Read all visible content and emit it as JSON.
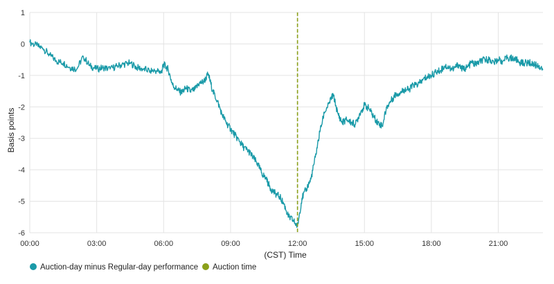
{
  "chart_data": {
    "type": "line",
    "title": "",
    "xlabel": "(CST) Time",
    "ylabel": "Basis points",
    "x_unit": "hours",
    "xlim": [
      0,
      23
    ],
    "ylim": [
      -6,
      1
    ],
    "x_ticks": [
      {
        "value": 0,
        "label": "00:00"
      },
      {
        "value": 3,
        "label": "03:00"
      },
      {
        "value": 6,
        "label": "06:00"
      },
      {
        "value": 9,
        "label": "09:00"
      },
      {
        "value": 12,
        "label": "12:00"
      },
      {
        "value": 15,
        "label": "15:00"
      },
      {
        "value": 18,
        "label": "18:00"
      },
      {
        "value": 21,
        "label": "21:00"
      }
    ],
    "y_ticks": [
      {
        "value": 1,
        "label": "1"
      },
      {
        "value": 0,
        "label": "0"
      },
      {
        "value": -1,
        "label": "-1"
      },
      {
        "value": -2,
        "label": "-2"
      },
      {
        "value": -3,
        "label": "-3"
      },
      {
        "value": -4,
        "label": "-4"
      },
      {
        "value": -5,
        "label": "-5"
      },
      {
        "value": -6,
        "label": "-6"
      }
    ],
    "grid": true,
    "legend_position": "bottom-left",
    "series": [
      {
        "name": "Auction-day minus Regular-day performance",
        "color": "#1a9aa8",
        "x": [
          0,
          0.3,
          0.6,
          0.9,
          1.2,
          1.5,
          1.8,
          2.1,
          2.4,
          2.7,
          3.0,
          3.3,
          3.6,
          3.9,
          4.2,
          4.5,
          4.8,
          5.1,
          5.4,
          5.7,
          5.9,
          6.0,
          6.2,
          6.4,
          6.6,
          6.8,
          7.0,
          7.2,
          7.4,
          7.6,
          7.8,
          8.0,
          8.2,
          8.4,
          8.6,
          8.8,
          9.0,
          9.2,
          9.4,
          9.6,
          9.8,
          10.0,
          10.2,
          10.4,
          10.6,
          10.8,
          11.0,
          11.2,
          11.4,
          11.6,
          11.8,
          12.0,
          12.2,
          12.4,
          12.6,
          12.8,
          13.0,
          13.2,
          13.4,
          13.6,
          13.8,
          14.0,
          14.2,
          14.4,
          14.6,
          14.8,
          15.0,
          15.2,
          15.4,
          15.6,
          15.8,
          16.0,
          16.2,
          16.4,
          16.6,
          16.8,
          17.0,
          17.2,
          17.4,
          17.6,
          17.8,
          18.0,
          18.2,
          18.4,
          18.6,
          18.8,
          19.0,
          19.2,
          19.4,
          19.6,
          19.8,
          20.0,
          20.2,
          20.4,
          20.6,
          20.8,
          21.0,
          21.2,
          21.4,
          21.6,
          21.8,
          22.0,
          22.2,
          22.4,
          22.6,
          22.8,
          23.0
        ],
        "y": [
          0.05,
          -0.05,
          -0.15,
          -0.35,
          -0.55,
          -0.6,
          -0.75,
          -0.8,
          -0.4,
          -0.7,
          -0.8,
          -0.75,
          -0.8,
          -0.7,
          -0.65,
          -0.6,
          -0.75,
          -0.8,
          -0.85,
          -0.85,
          -0.9,
          -0.65,
          -0.8,
          -1.3,
          -1.45,
          -1.55,
          -1.4,
          -1.5,
          -1.45,
          -1.25,
          -1.2,
          -0.95,
          -1.5,
          -1.8,
          -2.2,
          -2.5,
          -2.7,
          -2.9,
          -3.1,
          -3.3,
          -3.4,
          -3.6,
          -3.8,
          -4.1,
          -4.3,
          -4.6,
          -4.75,
          -4.85,
          -5.1,
          -5.5,
          -5.6,
          -5.8,
          -4.9,
          -4.6,
          -4.3,
          -3.6,
          -2.8,
          -2.2,
          -1.9,
          -1.6,
          -2.2,
          -2.5,
          -2.4,
          -2.5,
          -2.55,
          -2.2,
          -1.95,
          -2.05,
          -2.3,
          -2.5,
          -2.6,
          -2.0,
          -1.8,
          -1.6,
          -1.55,
          -1.45,
          -1.45,
          -1.3,
          -1.3,
          -1.15,
          -1.05,
          -1.0,
          -0.9,
          -0.85,
          -0.7,
          -0.75,
          -0.8,
          -0.65,
          -0.8,
          -0.75,
          -0.6,
          -0.65,
          -0.55,
          -0.5,
          -0.5,
          -0.6,
          -0.5,
          -0.55,
          -0.45,
          -0.45,
          -0.5,
          -0.6,
          -0.6,
          -0.6,
          -0.65,
          -0.7,
          -0.8
        ]
      },
      {
        "name": "Auction time",
        "color": "#8ba019",
        "style": "dashed",
        "x_value": 12
      }
    ]
  }
}
